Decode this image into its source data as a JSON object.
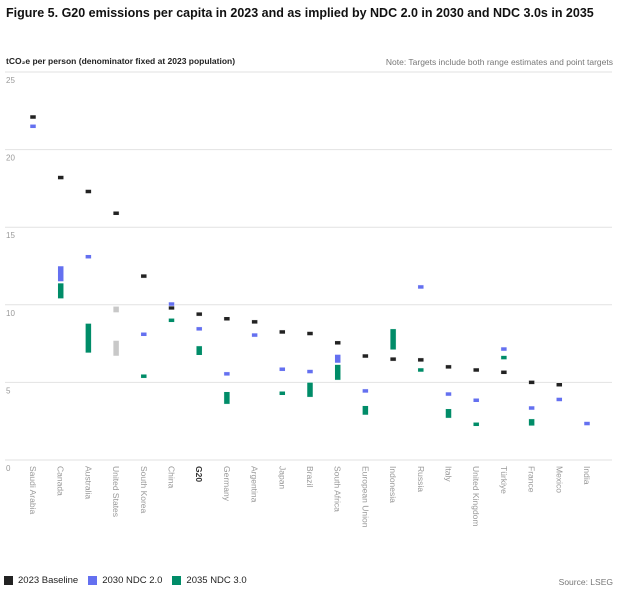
{
  "chart_data": {
    "type": "range",
    "title": "Figure 5. G20 emissions per capita in 2023 and as implied by NDC 2.0 in 2030 and NDC 3.0s in 2035",
    "ylabel": "tCO₂e per person (denominator fixed at 2023 population)",
    "note": "Note: Targets include both range estimates and point targets",
    "source": "Source: LSEG",
    "ylim": [
      0,
      25
    ],
    "yticks": [
      "0",
      "5",
      "10",
      "15",
      "20",
      "25"
    ],
    "grid": true,
    "legend_position": "bottom-left",
    "categories": [
      "Saudi Arabia",
      "Canada",
      "Australia",
      "United States",
      "South Korea",
      "China",
      "G20",
      "Germany",
      "Argentina",
      "Japan",
      "Brazil",
      "South Africa",
      "European Union",
      "Indonesia",
      "Russia",
      "Italy",
      "United Kingdom",
      "Türkiye",
      "France",
      "Mexico",
      "India"
    ],
    "bold_category": "G20",
    "series": [
      {
        "name": "2023 Baseline",
        "color": "#222222",
        "values": [
          22.1,
          18.2,
          17.3,
          15.9,
          11.85,
          9.8,
          9.4,
          9.1,
          8.9,
          8.25,
          8.15,
          7.55,
          6.7,
          6.5,
          6.45,
          6.0,
          5.8,
          5.65,
          5.0,
          4.85,
          null
        ]
      },
      {
        "name": "2030 NDC 2.0",
        "color": "#6470f0",
        "values": [
          21.5,
          [
            11.5,
            12.5
          ],
          13.1,
          null,
          8.1,
          10.05,
          8.45,
          5.55,
          8.05,
          5.85,
          5.7,
          [
            6.25,
            6.8
          ],
          4.45,
          null,
          11.15,
          4.25,
          3.85,
          7.15,
          3.35,
          3.9,
          2.35
        ]
      },
      {
        "name": "2035 NDC 3.0",
        "color": "#008c68",
        "values": [
          null,
          [
            10.4,
            11.4
          ],
          [
            6.9,
            8.8
          ],
          null,
          5.4,
          9.0,
          [
            6.75,
            7.35
          ],
          [
            3.6,
            4.4
          ],
          null,
          4.3,
          [
            4.05,
            5.0
          ],
          [
            5.15,
            6.15
          ],
          [
            2.9,
            3.5
          ],
          [
            7.1,
            8.45
          ],
          5.8,
          [
            2.7,
            3.3
          ],
          2.3,
          6.6,
          [
            2.2,
            2.65
          ],
          null,
          null
        ]
      },
      {
        "color": "#c8c8c8",
        "values": [
          null,
          null,
          null,
          [
            9.5,
            9.9
          ],
          null,
          null,
          null,
          null,
          null,
          null,
          null,
          null,
          null,
          null,
          null,
          null,
          null,
          null,
          null,
          null,
          null
        ]
      },
      {
        "color": "#c8c8c8",
        "values": [
          null,
          null,
          null,
          [
            6.7,
            7.7
          ],
          null,
          null,
          null,
          null,
          null,
          null,
          null,
          null,
          null,
          null,
          null,
          null,
          null,
          null,
          null,
          null,
          null
        ]
      }
    ]
  }
}
